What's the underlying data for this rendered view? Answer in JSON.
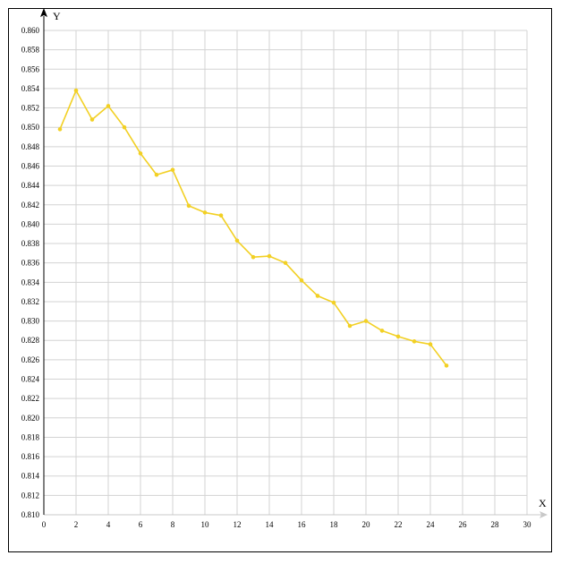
{
  "chart_data": {
    "type": "line",
    "title": "",
    "xlabel": "X",
    "ylabel": "Y",
    "xlim": [
      0,
      30
    ],
    "ylim": [
      0.81,
      0.86
    ],
    "x_ticks": [
      "0",
      "2",
      "4",
      "6",
      "8",
      "10",
      "12",
      "14",
      "16",
      "18",
      "20",
      "22",
      "24",
      "26",
      "28",
      "30"
    ],
    "y_ticks": [
      "0.810",
      "0.812",
      "0.814",
      "0.816",
      "0.818",
      "0.820",
      "0.822",
      "0.824",
      "0.826",
      "0.828",
      "0.830",
      "0.832",
      "0.834",
      "0.836",
      "0.838",
      "0.840",
      "0.842",
      "0.844",
      "0.846",
      "0.848",
      "0.850",
      "0.852",
      "0.854",
      "0.856",
      "0.858",
      "0.860"
    ],
    "grid": true,
    "series": [
      {
        "color": "#f2d024",
        "x": [
          1,
          2,
          3,
          4,
          5,
          6,
          7,
          8,
          9,
          10,
          11,
          12,
          13,
          14,
          15,
          16,
          17,
          18,
          19,
          20,
          21,
          22,
          23,
          24,
          25
        ],
        "y": [
          0.8498,
          0.8538,
          0.8508,
          0.8522,
          0.85,
          0.8473,
          0.8451,
          0.8456,
          0.8419,
          0.8412,
          0.8409,
          0.8383,
          0.8366,
          0.8367,
          0.836,
          0.8342,
          0.8326,
          0.8319,
          0.8295,
          0.83,
          0.829,
          0.8284,
          0.8279,
          0.8276,
          0.8254
        ]
      }
    ],
    "axis_color": "#000000",
    "grid_color": "#d3d3d3",
    "x_arrow_color": "#c8c8c8"
  }
}
